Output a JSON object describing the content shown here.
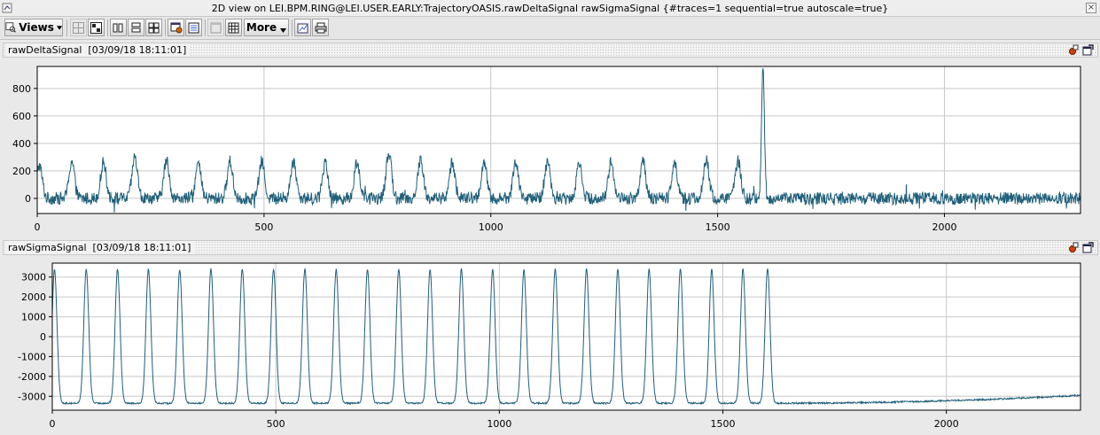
{
  "window": {
    "title": "2D view on LEI.BPM.RING@LEI.USER.EARLY:TrajectoryOASIS.rawDeltaSignal rawSigmaSignal  {#traces=1 sequential=true autoscale=true}"
  },
  "toolbar": {
    "views_label": "Views",
    "more_label": "More"
  },
  "colors": {
    "trace": "#1f5f7a",
    "grid": "#c8c8c8",
    "plot_bg": "#ffffff",
    "background": "#e9e9e9"
  },
  "panels": [
    {
      "title": "rawDeltaSignal",
      "timestamp": "[03/09/18 18:11:01]"
    },
    {
      "title": "rawSigmaSignal",
      "timestamp": "[03/09/18 18:11:01]"
    }
  ],
  "chart_data": [
    {
      "type": "line",
      "title": "rawDeltaSignal",
      "xlim": [
        0,
        2300
      ],
      "ylim": [
        -110,
        960
      ],
      "xticks": [
        0,
        500,
        1000,
        1500,
        2000
      ],
      "yticks": [
        0,
        200,
        400,
        600,
        800
      ],
      "grid": true,
      "series": [
        {
          "pulse_centers": [
            5,
            76,
            146,
            215,
            285,
            355,
            425,
            495,
            565,
            635,
            705,
            775,
            845,
            915,
            985,
            1055,
            1125,
            1195,
            1265,
            1335,
            1405,
            1475,
            1545,
            1600
          ],
          "pulse_peaks": [
            240,
            270,
            265,
            300,
            275,
            250,
            270,
            270,
            270,
            265,
            265,
            330,
            280,
            265,
            260,
            265,
            265,
            270,
            265,
            270,
            270,
            275,
            275,
            920
          ],
          "baseline": 0,
          "noise_amplitude": 45,
          "x_end": 2300
        }
      ]
    },
    {
      "type": "line",
      "title": "rawSigmaSignal",
      "xlim": [
        0,
        2300
      ],
      "ylim": [
        -3700,
        3700
      ],
      "xticks": [
        0,
        500,
        1000,
        1500,
        2000
      ],
      "yticks": [
        -3000,
        -2000,
        -1000,
        0,
        1000,
        2000,
        3000
      ],
      "grid": true,
      "series": [
        {
          "pulse_centers": [
            5,
            76,
            146,
            215,
            285,
            355,
            425,
            495,
            565,
            635,
            705,
            775,
            845,
            915,
            985,
            1055,
            1125,
            1195,
            1265,
            1335,
            1405,
            1475,
            1545,
            1600
          ],
          "pulse_peaks": [
            3400,
            3400,
            3400,
            3400,
            3380,
            3400,
            3400,
            3400,
            3400,
            3400,
            3400,
            3400,
            3400,
            3400,
            3380,
            3380,
            3400,
            3400,
            3400,
            3400,
            3400,
            3380,
            3400,
            3400
          ],
          "baseline": -3350,
          "baseline_end": -2950,
          "noise_amplitude": 40,
          "x_end": 2300
        }
      ]
    }
  ]
}
